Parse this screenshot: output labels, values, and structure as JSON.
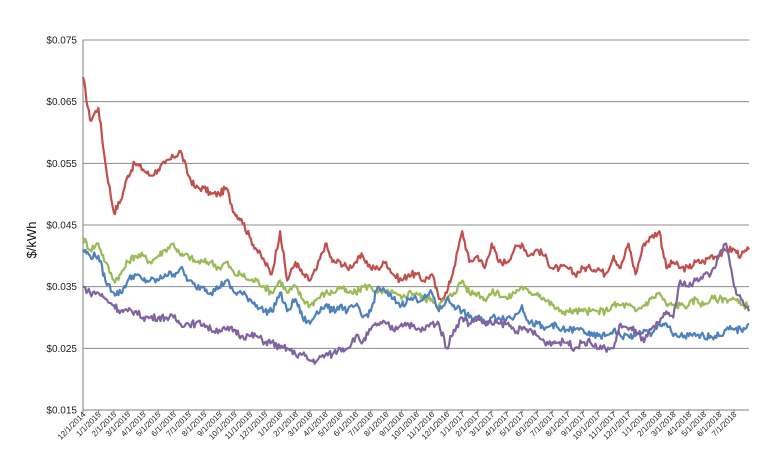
{
  "chart_data": {
    "type": "line",
    "title": "",
    "xlabel": "",
    "ylabel": "$/kWh",
    "ylim": [
      0.015,
      0.075
    ],
    "y_ticks": [
      "$0.075",
      "$0.065",
      "$0.055",
      "$0.045",
      "$0.035",
      "$0.025",
      "$0.015"
    ],
    "y_tick_values": [
      0.075,
      0.065,
      0.055,
      0.045,
      0.035,
      0.025,
      0.015
    ],
    "grid": true,
    "legend": "none",
    "x_start": "12/1/2014",
    "x_end": "7/31/2018",
    "x_ticks": [
      "12/1/2014",
      "1/1/2015",
      "2/1/2015",
      "3/1/2015",
      "4/1/2015",
      "5/1/2015",
      "6/1/2015",
      "7/1/2015",
      "8/1/2015",
      "9/1/2015",
      "10/1/2015",
      "11/1/2015",
      "12/1/2015",
      "1/1/2016",
      "2/1/2016",
      "3/1/2016",
      "4/1/2016",
      "5/1/2016",
      "6/1/2016",
      "7/1/2016",
      "8/1/2016",
      "9/1/2016",
      "10/1/2016",
      "11/1/2016",
      "12/1/2016",
      "1/1/2017",
      "2/1/2017",
      "3/1/2017",
      "4/1/2017",
      "5/1/2017",
      "6/1/2017",
      "7/1/2017",
      "8/1/2017",
      "9/1/2017",
      "10/1/2017",
      "11/1/2017",
      "12/1/2017",
      "1/1/2018",
      "2/1/2018",
      "3/1/2018",
      "4/1/2018",
      "5/1/2018",
      "6/1/2018",
      "7/1/2018"
    ],
    "series": [
      {
        "color": "#c0504d",
        "x": [
          "12/1/2014",
          "12/15/2014",
          "1/1/2015",
          "1/15/2015",
          "2/1/2015",
          "2/15/2015",
          "3/1/2015",
          "3/15/2015",
          "4/1/2015",
          "4/15/2015",
          "5/1/2015",
          "5/15/2015",
          "6/1/2015",
          "6/15/2015",
          "7/1/2015",
          "7/15/2015",
          "8/1/2015",
          "8/15/2015",
          "9/1/2015",
          "9/15/2015",
          "10/1/2015",
          "10/15/2015",
          "11/1/2015",
          "11/15/2015",
          "12/1/2015",
          "12/15/2015",
          "1/1/2016",
          "1/15/2016",
          "2/1/2016",
          "2/15/2016",
          "3/1/2016",
          "3/15/2016",
          "4/1/2016",
          "4/15/2016",
          "5/1/2016",
          "5/15/2016",
          "6/1/2016",
          "6/15/2016",
          "7/1/2016",
          "7/15/2016",
          "8/1/2016",
          "8/15/2016",
          "9/1/2016",
          "9/15/2016",
          "10/1/2016",
          "10/15/2016",
          "11/1/2016",
          "11/15/2016",
          "12/1/2016",
          "12/15/2016",
          "1/1/2017",
          "1/15/2017",
          "2/1/2017",
          "2/15/2017",
          "3/1/2017",
          "3/15/2017",
          "4/1/2017",
          "4/15/2017",
          "5/1/2017",
          "5/15/2017",
          "6/1/2017",
          "6/15/2017",
          "7/1/2017",
          "7/15/2017",
          "8/1/2017",
          "8/15/2017",
          "9/1/2017",
          "9/15/2017",
          "10/1/2017",
          "10/15/2017",
          "11/1/2017",
          "11/15/2017",
          "12/1/2017",
          "12/15/2017",
          "1/1/2018",
          "1/15/2018",
          "2/1/2018",
          "2/15/2018",
          "3/1/2018",
          "3/15/2018",
          "4/1/2018",
          "4/15/2018",
          "5/1/2018",
          "5/15/2018",
          "6/1/2018",
          "6/15/2018",
          "7/1/2018",
          "7/15/2018",
          "7/31/2018"
        ],
        "values": [
          0.069,
          0.062,
          0.064,
          0.055,
          0.047,
          0.049,
          0.053,
          0.055,
          0.054,
          0.053,
          0.054,
          0.055,
          0.056,
          0.057,
          0.053,
          0.051,
          0.051,
          0.05,
          0.05,
          0.051,
          0.047,
          0.046,
          0.043,
          0.041,
          0.039,
          0.037,
          0.044,
          0.036,
          0.039,
          0.037,
          0.036,
          0.038,
          0.042,
          0.039,
          0.039,
          0.038,
          0.039,
          0.04,
          0.038,
          0.038,
          0.039,
          0.037,
          0.036,
          0.037,
          0.037,
          0.036,
          0.037,
          0.033,
          0.034,
          0.038,
          0.044,
          0.039,
          0.04,
          0.038,
          0.042,
          0.039,
          0.039,
          0.041,
          0.042,
          0.04,
          0.041,
          0.04,
          0.038,
          0.038,
          0.038,
          0.037,
          0.038,
          0.038,
          0.038,
          0.037,
          0.04,
          0.038,
          0.042,
          0.037,
          0.042,
          0.043,
          0.044,
          0.038,
          0.039,
          0.038,
          0.038,
          0.039,
          0.039,
          0.04,
          0.04,
          0.041,
          0.041,
          0.04,
          0.041
        ]
      },
      {
        "color": "#9bbb59",
        "x": [
          "12/1/2014",
          "12/15/2014",
          "1/1/2015",
          "1/15/2015",
          "2/1/2015",
          "2/15/2015",
          "3/1/2015",
          "3/15/2015",
          "4/1/2015",
          "4/15/2015",
          "5/1/2015",
          "5/15/2015",
          "6/1/2015",
          "6/15/2015",
          "7/1/2015",
          "7/15/2015",
          "8/1/2015",
          "8/15/2015",
          "9/1/2015",
          "9/15/2015",
          "10/1/2015",
          "10/15/2015",
          "11/1/2015",
          "11/15/2015",
          "12/1/2015",
          "12/15/2015",
          "1/1/2016",
          "1/15/2016",
          "2/1/2016",
          "2/15/2016",
          "3/1/2016",
          "3/15/2016",
          "4/1/2016",
          "4/15/2016",
          "5/1/2016",
          "5/15/2016",
          "6/1/2016",
          "6/15/2016",
          "7/1/2016",
          "7/15/2016",
          "8/1/2016",
          "8/15/2016",
          "9/1/2016",
          "9/15/2016",
          "10/1/2016",
          "10/15/2016",
          "11/1/2016",
          "11/15/2016",
          "12/1/2016",
          "12/15/2016",
          "1/1/2017",
          "1/15/2017",
          "2/1/2017",
          "2/15/2017",
          "3/1/2017",
          "3/15/2017",
          "4/1/2017",
          "4/15/2017",
          "5/1/2017",
          "5/15/2017",
          "6/1/2017",
          "6/15/2017",
          "7/1/2017",
          "7/15/2017",
          "8/1/2017",
          "8/15/2017",
          "9/1/2017",
          "9/15/2017",
          "10/1/2017",
          "10/15/2017",
          "11/1/2017",
          "11/15/2017",
          "12/1/2017",
          "12/15/2017",
          "1/1/2018",
          "1/15/2018",
          "2/1/2018",
          "2/15/2018",
          "3/1/2018",
          "3/15/2018",
          "4/1/2018",
          "4/15/2018",
          "5/1/2018",
          "5/15/2018",
          "6/1/2018",
          "6/15/2018",
          "7/1/2018",
          "7/15/2018",
          "7/31/2018"
        ],
        "values": [
          0.043,
          0.041,
          0.042,
          0.039,
          0.036,
          0.037,
          0.039,
          0.04,
          0.04,
          0.039,
          0.04,
          0.041,
          0.042,
          0.04,
          0.04,
          0.039,
          0.039,
          0.039,
          0.038,
          0.039,
          0.037,
          0.037,
          0.036,
          0.036,
          0.035,
          0.034,
          0.036,
          0.034,
          0.035,
          0.033,
          0.032,
          0.033,
          0.034,
          0.034,
          0.035,
          0.034,
          0.034,
          0.035,
          0.035,
          0.034,
          0.034,
          0.034,
          0.033,
          0.034,
          0.034,
          0.033,
          0.033,
          0.032,
          0.033,
          0.034,
          0.036,
          0.034,
          0.034,
          0.033,
          0.034,
          0.034,
          0.033,
          0.034,
          0.035,
          0.034,
          0.034,
          0.033,
          0.032,
          0.031,
          0.031,
          0.031,
          0.031,
          0.031,
          0.031,
          0.031,
          0.032,
          0.032,
          0.032,
          0.031,
          0.032,
          0.033,
          0.034,
          0.032,
          0.032,
          0.032,
          0.032,
          0.033,
          0.032,
          0.033,
          0.033,
          0.033,
          0.033,
          0.032,
          0.032
        ]
      },
      {
        "color": "#4f81bd",
        "x": [
          "12/1/2014",
          "12/15/2014",
          "1/1/2015",
          "1/15/2015",
          "2/1/2015",
          "2/15/2015",
          "3/1/2015",
          "3/15/2015",
          "4/1/2015",
          "4/15/2015",
          "5/1/2015",
          "5/15/2015",
          "6/1/2015",
          "6/15/2015",
          "7/1/2015",
          "7/15/2015",
          "8/1/2015",
          "8/15/2015",
          "9/1/2015",
          "9/15/2015",
          "10/1/2015",
          "10/15/2015",
          "11/1/2015",
          "11/15/2015",
          "12/1/2015",
          "12/15/2015",
          "1/1/2016",
          "1/15/2016",
          "2/1/2016",
          "2/15/2016",
          "3/1/2016",
          "3/15/2016",
          "4/1/2016",
          "4/15/2016",
          "5/1/2016",
          "5/15/2016",
          "6/1/2016",
          "6/15/2016",
          "7/1/2016",
          "7/15/2016",
          "8/1/2016",
          "8/15/2016",
          "9/1/2016",
          "9/15/2016",
          "10/1/2016",
          "10/15/2016",
          "11/1/2016",
          "11/15/2016",
          "12/1/2016",
          "12/15/2016",
          "1/1/2017",
          "1/15/2017",
          "2/1/2017",
          "2/15/2017",
          "3/1/2017",
          "3/15/2017",
          "4/1/2017",
          "4/15/2017",
          "5/1/2017",
          "5/15/2017",
          "6/1/2017",
          "6/15/2017",
          "7/1/2017",
          "7/15/2017",
          "8/1/2017",
          "8/15/2017",
          "9/1/2017",
          "9/15/2017",
          "10/1/2017",
          "10/15/2017",
          "11/1/2017",
          "11/15/2017",
          "12/1/2017",
          "12/15/2017",
          "1/1/2018",
          "1/15/2018",
          "2/1/2018",
          "2/15/2018",
          "3/1/2018",
          "3/15/2018",
          "4/1/2018",
          "4/15/2018",
          "5/1/2018",
          "5/15/2018",
          "6/1/2018",
          "6/15/2018",
          "7/1/2018",
          "7/15/2018",
          "7/31/2018"
        ],
        "values": [
          0.041,
          0.04,
          0.04,
          0.036,
          0.034,
          0.034,
          0.036,
          0.037,
          0.036,
          0.036,
          0.036,
          0.037,
          0.037,
          0.038,
          0.036,
          0.035,
          0.035,
          0.034,
          0.035,
          0.036,
          0.034,
          0.034,
          0.033,
          0.032,
          0.031,
          0.031,
          0.034,
          0.031,
          0.033,
          0.03,
          0.029,
          0.031,
          0.032,
          0.031,
          0.032,
          0.031,
          0.032,
          0.03,
          0.031,
          0.035,
          0.034,
          0.033,
          0.032,
          0.033,
          0.033,
          0.033,
          0.034,
          0.031,
          0.033,
          0.032,
          0.031,
          0.03,
          0.03,
          0.029,
          0.03,
          0.03,
          0.03,
          0.03,
          0.032,
          0.029,
          0.029,
          0.028,
          0.029,
          0.028,
          0.028,
          0.028,
          0.028,
          0.027,
          0.027,
          0.027,
          0.028,
          0.027,
          0.027,
          0.027,
          0.028,
          0.027,
          0.029,
          0.029,
          0.027,
          0.027,
          0.027,
          0.027,
          0.027,
          0.027,
          0.027,
          0.028,
          0.028,
          0.028,
          0.029
        ]
      },
      {
        "color": "#8064a2",
        "x": [
          "12/1/2014",
          "12/15/2014",
          "1/1/2015",
          "1/15/2015",
          "2/1/2015",
          "2/15/2015",
          "3/1/2015",
          "3/15/2015",
          "4/1/2015",
          "4/15/2015",
          "5/1/2015",
          "5/15/2015",
          "6/1/2015",
          "6/15/2015",
          "7/1/2015",
          "7/15/2015",
          "8/1/2015",
          "8/15/2015",
          "9/1/2015",
          "9/15/2015",
          "10/1/2015",
          "10/15/2015",
          "11/1/2015",
          "11/15/2015",
          "12/1/2015",
          "12/15/2015",
          "1/1/2016",
          "1/15/2016",
          "2/1/2016",
          "2/15/2016",
          "3/1/2016",
          "3/15/2016",
          "4/1/2016",
          "4/15/2016",
          "5/1/2016",
          "5/15/2016",
          "6/1/2016",
          "6/15/2016",
          "7/1/2016",
          "7/15/2016",
          "8/1/2016",
          "8/15/2016",
          "9/1/2016",
          "9/15/2016",
          "10/1/2016",
          "10/15/2016",
          "11/1/2016",
          "11/15/2016",
          "12/1/2016",
          "12/15/2016",
          "1/1/2017",
          "1/15/2017",
          "2/1/2017",
          "2/15/2017",
          "3/1/2017",
          "3/15/2017",
          "4/1/2017",
          "4/15/2017",
          "5/1/2017",
          "5/15/2017",
          "6/1/2017",
          "6/15/2017",
          "7/1/2017",
          "7/15/2017",
          "8/1/2017",
          "8/15/2017",
          "9/1/2017",
          "9/15/2017",
          "10/1/2017",
          "10/15/2017",
          "11/1/2017",
          "11/15/2017",
          "12/1/2017",
          "12/15/2017",
          "1/1/2018",
          "1/15/2018",
          "2/1/2018",
          "2/15/2018",
          "3/1/2018",
          "3/15/2018",
          "4/1/2018",
          "4/15/2018",
          "5/1/2018",
          "5/15/2018",
          "6/1/2018",
          "6/15/2018",
          "7/1/2018",
          "7/15/2018",
          "7/31/2018"
        ],
        "values": [
          0.035,
          0.034,
          0.034,
          0.033,
          0.032,
          0.031,
          0.031,
          0.031,
          0.03,
          0.03,
          0.03,
          0.03,
          0.03,
          0.029,
          0.029,
          0.029,
          0.029,
          0.028,
          0.028,
          0.028,
          0.028,
          0.027,
          0.027,
          0.027,
          0.026,
          0.026,
          0.025,
          0.025,
          0.024,
          0.024,
          0.023,
          0.023,
          0.024,
          0.024,
          0.025,
          0.025,
          0.027,
          0.026,
          0.028,
          0.029,
          0.029,
          0.028,
          0.029,
          0.029,
          0.028,
          0.028,
          0.029,
          0.029,
          0.025,
          0.028,
          0.03,
          0.029,
          0.03,
          0.029,
          0.029,
          0.029,
          0.029,
          0.028,
          0.028,
          0.028,
          0.027,
          0.026,
          0.026,
          0.026,
          0.026,
          0.025,
          0.026,
          0.026,
          0.025,
          0.025,
          0.025,
          0.029,
          0.028,
          0.028,
          0.026,
          0.028,
          0.029,
          0.031,
          0.03,
          0.036,
          0.035,
          0.036,
          0.037,
          0.037,
          0.04,
          0.042,
          0.035,
          0.033,
          0.031
        ]
      }
    ]
  }
}
